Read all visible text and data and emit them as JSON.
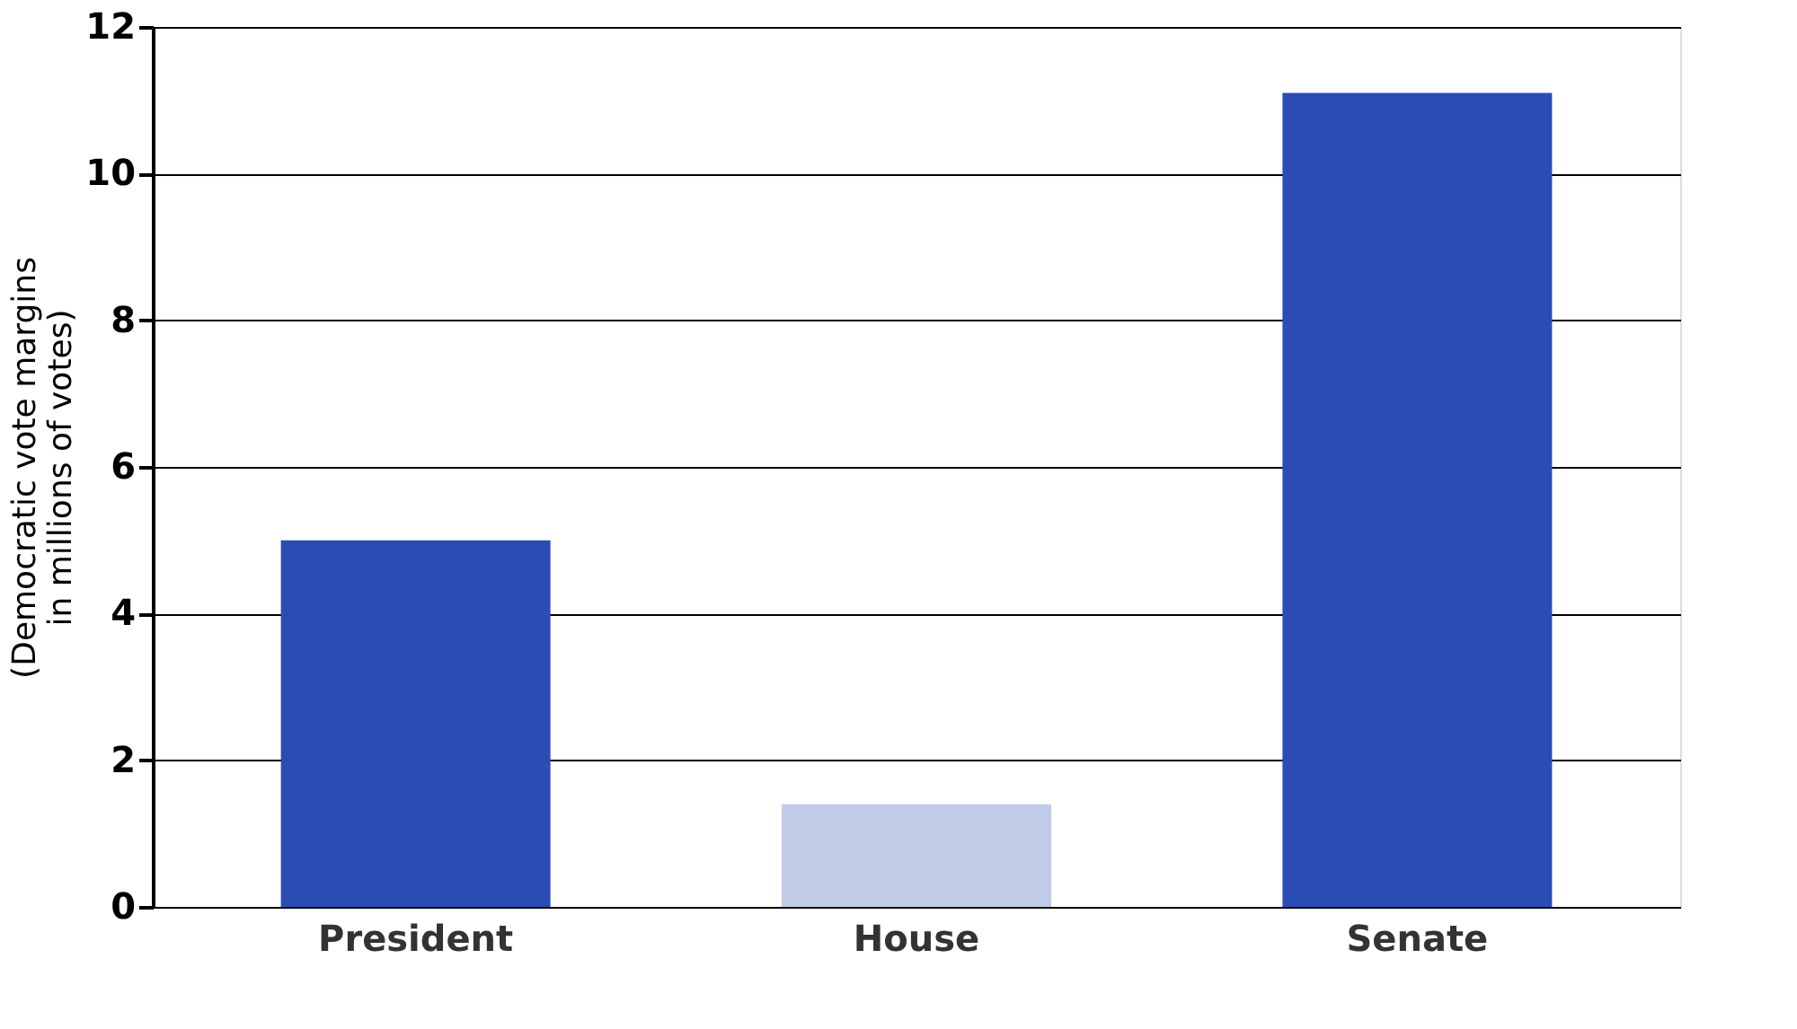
{
  "chart_data": {
    "type": "bar",
    "categories": [
      "President",
      "House",
      "Senate"
    ],
    "values": [
      5.0,
      1.4,
      11.1
    ],
    "colors": [
      "#2b4db3",
      "#c0cbe8",
      "#2b4db3"
    ],
    "ylabel": "(Democratic vote margins\nin millions of votes)",
    "ylim": [
      0,
      12
    ],
    "yticks": [
      0,
      2,
      4,
      6,
      8,
      10,
      12
    ],
    "grid": "y"
  }
}
